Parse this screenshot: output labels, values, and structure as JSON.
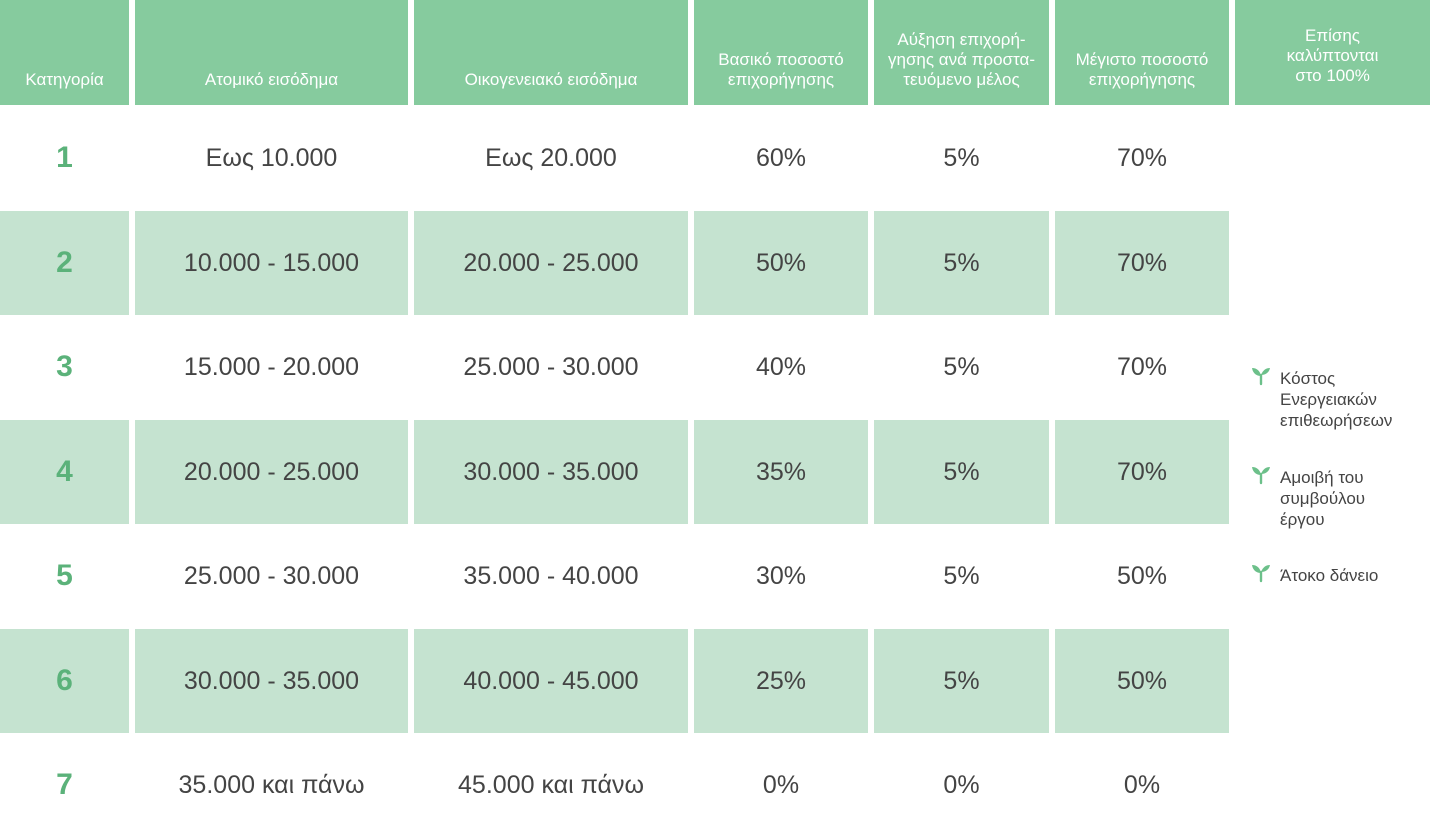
{
  "table": {
    "headers": [
      "Κατηγορία",
      "Ατομικό εισόδημα",
      "Οικογενειακό εισόδημα",
      "Βασικό ποσοστό\nεπιχορήγησης",
      "Αύξηση επιχορή-\nγησης ανά προστα-\nτευόμενο μέλος",
      "Μέγιστο ποσοστό\nεπιχορήγησης",
      "Επίσης\nκαλύπτονται\nστο 100%"
    ],
    "rows": [
      [
        "1",
        "Εως 10.000",
        "Εως 20.000",
        "60%",
        "5%",
        "70%"
      ],
      [
        "2",
        "10.000 - 15.000",
        "20.000 - 25.000",
        "50%",
        "5%",
        "70%"
      ],
      [
        "3",
        "15.000 - 20.000",
        "25.000 - 30.000",
        "40%",
        "5%",
        "70%"
      ],
      [
        "4",
        "20.000 - 25.000",
        "30.000 - 35.000",
        "35%",
        "5%",
        "70%"
      ],
      [
        "5",
        "25.000 - 30.000",
        "35.000 - 40.000",
        "30%",
        "5%",
        "50%"
      ],
      [
        "6",
        "30.000 - 35.000",
        "40.000 - 45.000",
        "25%",
        "5%",
        "50%"
      ],
      [
        "7",
        "35.000 και πάνω",
        "45.000 και πάνω",
        "0%",
        "0%",
        "0%"
      ]
    ]
  },
  "benefits": [
    {
      "icon": "sprout-icon",
      "label": "Κόστος\nΕνεργειακών\nεπιθεωρήσεων"
    },
    {
      "icon": "sprout-icon",
      "label": "Αμοιβή του\nσυμβούλου\nέργου"
    },
    {
      "icon": "sprout-icon",
      "label": "Άτοκο δάνειο"
    }
  ],
  "colors": {
    "header_bg": "#86cb9e",
    "stripe_bg": "#c5e3d0",
    "category_text": "#5bb27a",
    "body_text": "#444444"
  }
}
